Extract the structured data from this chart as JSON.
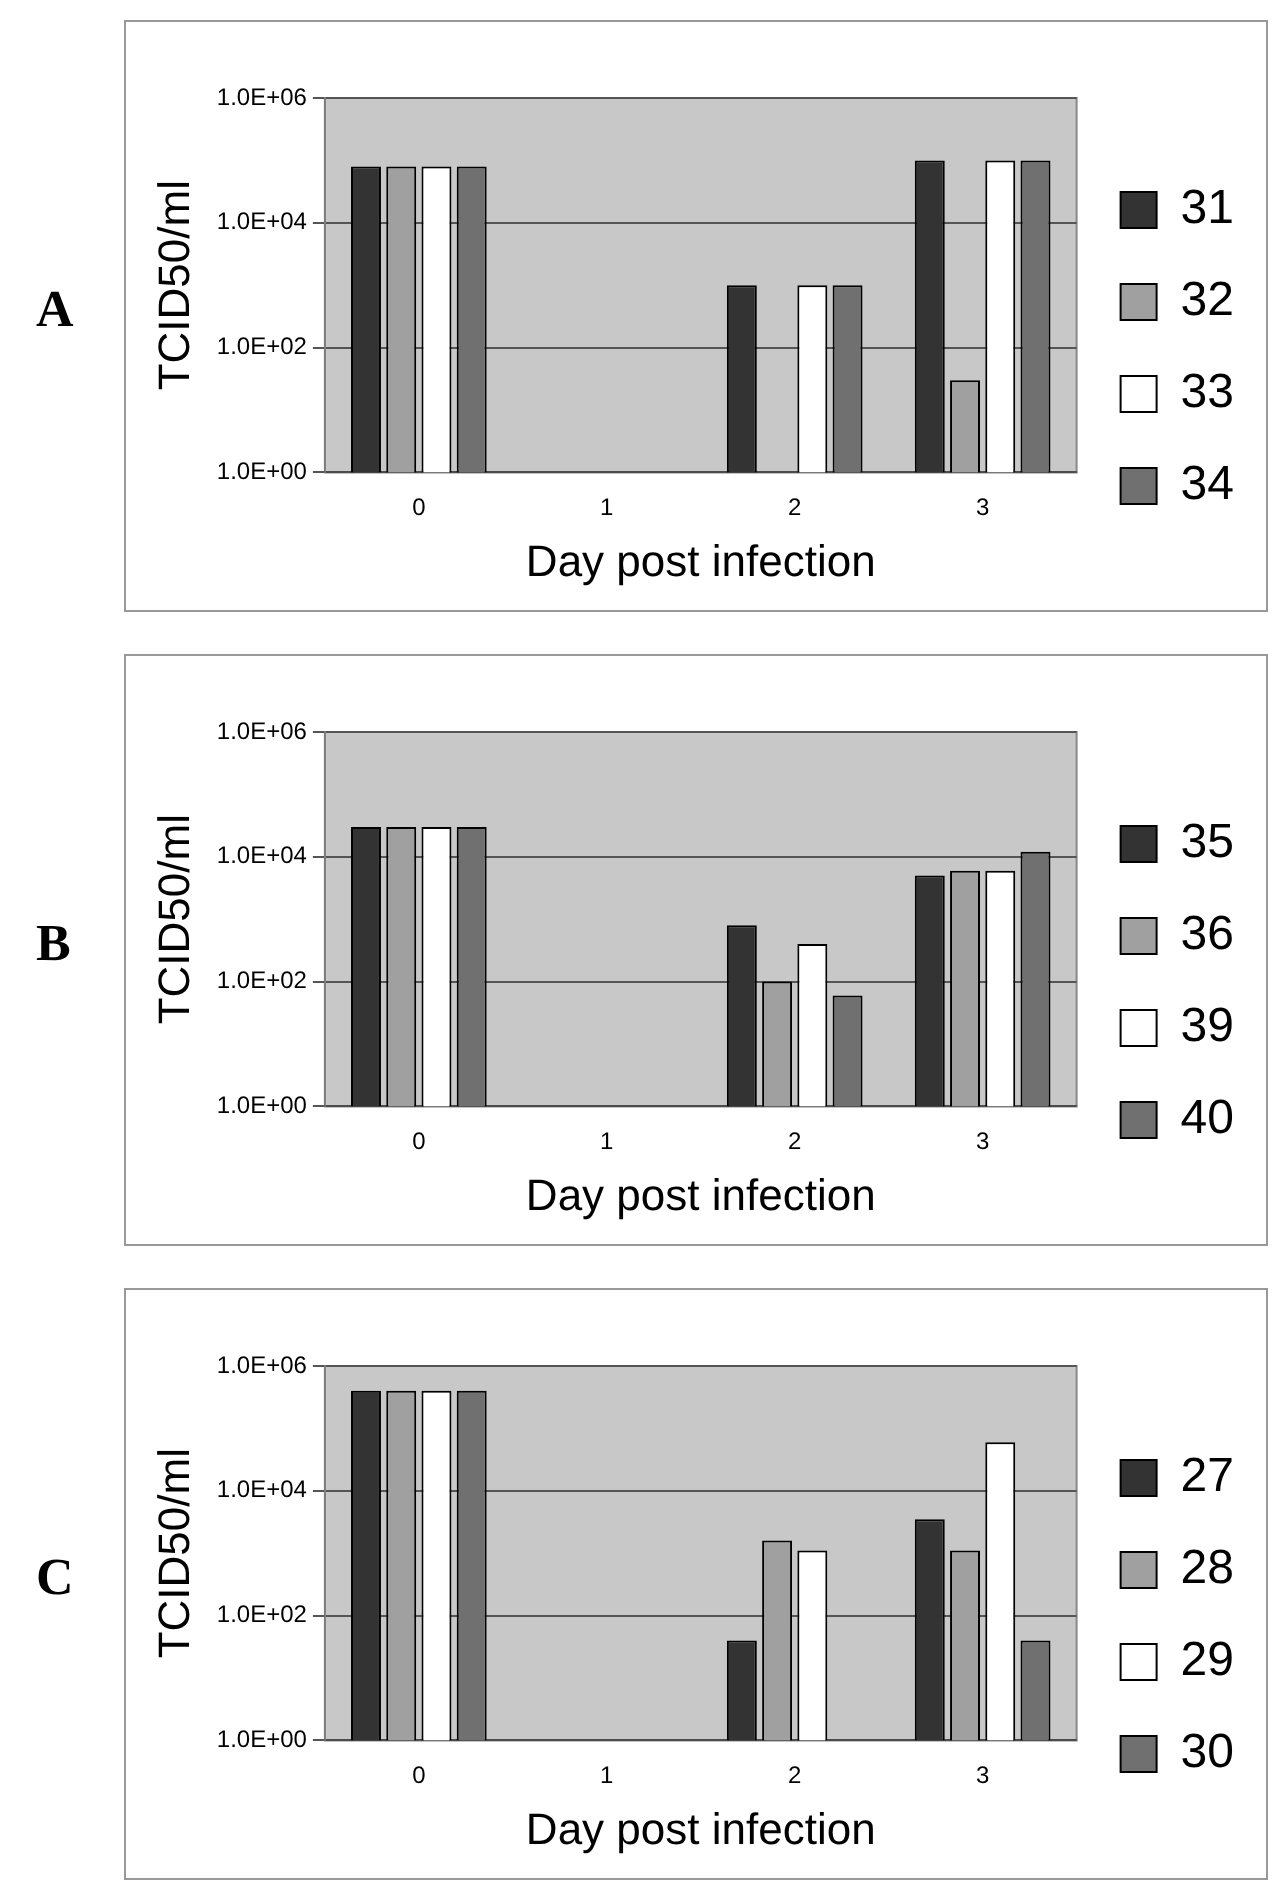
{
  "chart_data": [
    {
      "type": "bar",
      "title": "A",
      "xlabel": "Day post infection",
      "ylabel": "TCID50/ml",
      "categories": [
        "0",
        "1",
        "2",
        "3"
      ],
      "log": "y",
      "ylim": [
        1,
        1000000
      ],
      "yticks": [
        {
          "value": 1,
          "label": "1.0E+00"
        },
        {
          "value": 100,
          "label": "1.0E+02"
        },
        {
          "value": 10000,
          "label": "1.0E+04"
        },
        {
          "value": 1000000,
          "label": "1.0E+06"
        }
      ],
      "grid": "y",
      "legend": "right",
      "series": [
        {
          "name": "31",
          "color": "#333333",
          "values": [
            80000,
            null,
            1000,
            100000
          ]
        },
        {
          "name": "32",
          "color": "#a0a0a0",
          "values": [
            80000,
            null,
            null,
            30
          ]
        },
        {
          "name": "33",
          "color": "#ffffff",
          "values": [
            80000,
            null,
            1000,
            100000
          ]
        },
        {
          "name": "34",
          "color": "#707070",
          "values": [
            80000,
            null,
            1000,
            100000
          ]
        }
      ]
    },
    {
      "type": "bar",
      "title": "B",
      "xlabel": "Day post infection",
      "ylabel": "TCID50/ml",
      "categories": [
        "0",
        "1",
        "2",
        "3"
      ],
      "log": "y",
      "ylim": [
        1,
        1000000
      ],
      "yticks": [
        {
          "value": 1,
          "label": "1.0E+00"
        },
        {
          "value": 100,
          "label": "1.0E+02"
        },
        {
          "value": 10000,
          "label": "1.0E+04"
        },
        {
          "value": 1000000,
          "label": "1.0E+06"
        }
      ],
      "grid": "y",
      "legend": "right",
      "series": [
        {
          "name": "35",
          "color": "#333333",
          "values": [
            30000,
            null,
            800,
            5000
          ]
        },
        {
          "name": "36",
          "color": "#a0a0a0",
          "values": [
            30000,
            null,
            100,
            6000
          ]
        },
        {
          "name": "39",
          "color": "#ffffff",
          "values": [
            30000,
            null,
            400,
            6000
          ]
        },
        {
          "name": "40",
          "color": "#707070",
          "values": [
            30000,
            null,
            60,
            12000
          ]
        }
      ]
    },
    {
      "type": "bar",
      "title": "C",
      "xlabel": "Day post infection",
      "ylabel": "TCID50/ml",
      "categories": [
        "0",
        "1",
        "2",
        "3"
      ],
      "log": "y",
      "ylim": [
        1,
        1000000
      ],
      "yticks": [
        {
          "value": 1,
          "label": "1.0E+00"
        },
        {
          "value": 100,
          "label": "1.0E+02"
        },
        {
          "value": 10000,
          "label": "1.0E+04"
        },
        {
          "value": 1000000,
          "label": "1.0E+06"
        }
      ],
      "grid": "y",
      "legend": "right",
      "series": [
        {
          "name": "27",
          "color": "#333333",
          "values": [
            400000,
            null,
            40,
            3500
          ]
        },
        {
          "name": "28",
          "color": "#a0a0a0",
          "values": [
            400000,
            null,
            1600,
            1100
          ]
        },
        {
          "name": "29",
          "color": "#ffffff",
          "values": [
            400000,
            null,
            1100,
            60000
          ]
        },
        {
          "name": "30",
          "color": "#707070",
          "values": [
            400000,
            null,
            null,
            40
          ]
        }
      ]
    }
  ]
}
